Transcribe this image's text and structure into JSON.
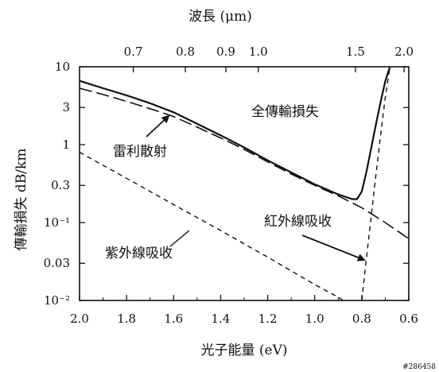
{
  "chart_data": {
    "type": "line",
    "x_axis": {
      "label": "光子能量 (eV)",
      "range": [
        2.0,
        0.6
      ],
      "ticks": [
        2.0,
        1.8,
        1.6,
        1.4,
        1.2,
        1.0,
        0.8,
        0.6
      ],
      "tick_labels": [
        "2.0",
        "1.8",
        "1.6",
        "1.4",
        "1.2",
        "1.0",
        "0.8",
        "0.6"
      ]
    },
    "top_axis": {
      "label": "波長 (μm)",
      "ticks": [
        0.7,
        0.8,
        0.9,
        1.0,
        1.5,
        2.0
      ],
      "tick_labels": [
        "0.7",
        "0.8",
        "0.9",
        "1.0",
        "1.5",
        "2.0"
      ]
    },
    "y_axis": {
      "label": "傳輸損失 dB/km",
      "scale": "log",
      "range": [
        0.01,
        10
      ],
      "ticks": [
        0.01,
        0.03,
        0.1,
        0.3,
        1,
        3,
        10
      ],
      "tick_labels": [
        "10⁻²",
        "0.03",
        "10⁻¹",
        "0.3",
        "1",
        "3",
        "10"
      ]
    },
    "series": [
      {
        "name": "全傳輸損失",
        "style": "solid",
        "points": [
          [
            2.0,
            6.6
          ],
          [
            1.9,
            5.3
          ],
          [
            1.8,
            4.3
          ],
          [
            1.7,
            3.4
          ],
          [
            1.6,
            2.6
          ],
          [
            1.5,
            1.85
          ],
          [
            1.4,
            1.32
          ],
          [
            1.3,
            0.92
          ],
          [
            1.2,
            0.63
          ],
          [
            1.1,
            0.44
          ],
          [
            1.0,
            0.31
          ],
          [
            0.9,
            0.23
          ],
          [
            0.84,
            0.2
          ],
          [
            0.82,
            0.2
          ],
          [
            0.8,
            0.25
          ],
          [
            0.78,
            0.45
          ],
          [
            0.76,
            0.9
          ],
          [
            0.74,
            1.8
          ],
          [
            0.72,
            3.5
          ],
          [
            0.7,
            6.5
          ],
          [
            0.68,
            10
          ]
        ]
      },
      {
        "name": "雷利散射",
        "style": "long-dash",
        "points": [
          [
            2.0,
            5.3
          ],
          [
            1.9,
            4.4
          ],
          [
            1.8,
            3.6
          ],
          [
            1.7,
            2.9
          ],
          [
            1.6,
            2.3
          ],
          [
            1.5,
            1.68
          ],
          [
            1.4,
            1.22
          ],
          [
            1.3,
            0.87
          ],
          [
            1.2,
            0.6
          ],
          [
            1.1,
            0.42
          ],
          [
            1.0,
            0.3
          ],
          [
            0.9,
            0.22
          ],
          [
            0.8,
            0.155
          ],
          [
            0.7,
            0.1
          ],
          [
            0.6,
            0.062
          ]
        ]
      },
      {
        "name": "紫外線吸收",
        "style": "short-dash",
        "points": [
          [
            2.0,
            0.8
          ],
          [
            1.8,
            0.37
          ],
          [
            1.6,
            0.17
          ],
          [
            1.4,
            0.079
          ],
          [
            1.2,
            0.036
          ],
          [
            1.0,
            0.016
          ],
          [
            0.9,
            0.011
          ],
          [
            0.88,
            0.01
          ]
        ]
      },
      {
        "name": "紅外線吸收",
        "style": "short-dash",
        "points": [
          [
            0.8,
            0.01
          ],
          [
            0.78,
            0.035
          ],
          [
            0.76,
            0.12
          ],
          [
            0.74,
            0.4
          ],
          [
            0.72,
            1.3
          ],
          [
            0.7,
            4.0
          ],
          [
            0.68,
            10
          ]
        ]
      }
    ],
    "annotations": [
      {
        "text": "全傳輸損失",
        "target_series": "全傳輸損失"
      },
      {
        "text": "雷利散射",
        "target_series": "雷利散射",
        "arrow": true
      },
      {
        "text": "紫外線吸收",
        "target_series": "紫外線吸收"
      },
      {
        "text": "紅外線吸收",
        "target_series": "紅外線吸收",
        "arrow": true
      }
    ],
    "grid": false,
    "legend": "none"
  },
  "watermark": "#286458"
}
